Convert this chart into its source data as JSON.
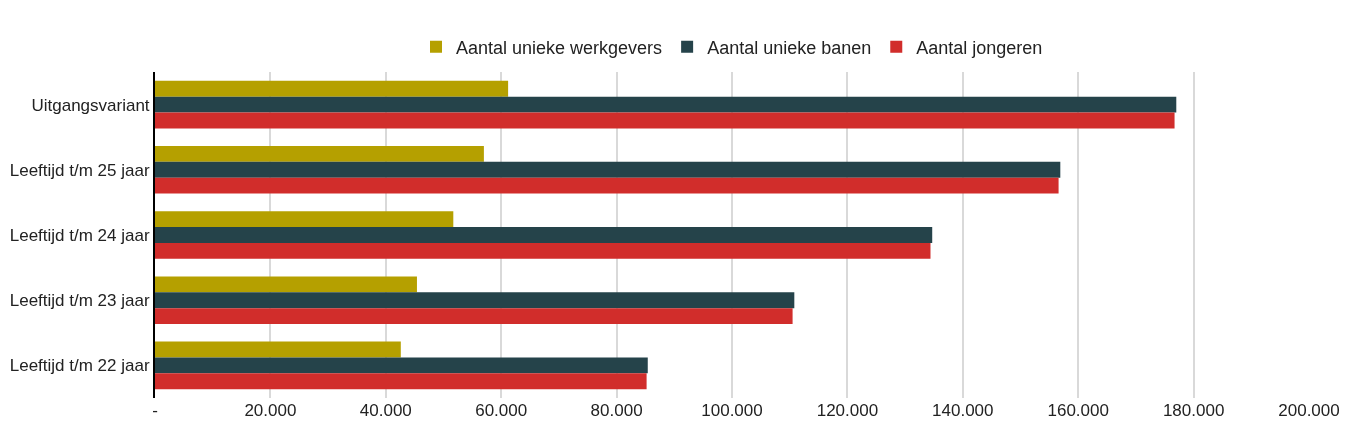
{
  "chart_data": {
    "type": "bar",
    "orientation": "horizontal",
    "categories": [
      "Uitgangsvariant",
      "Leeftijd t/m 25 jaar",
      "Leeftijd t/m 24 jaar",
      "Leeftijd t/m 23 jaar",
      "Leeftijd t/m 22 jaar"
    ],
    "series": [
      {
        "name": "Aantal unieke werkgevers",
        "color": "#b5a000",
        "values": [
          61200,
          57000,
          51700,
          45400,
          42600
        ]
      },
      {
        "name": "Aantal unieke banen",
        "color": "#25434a",
        "values": [
          177000,
          156900,
          134700,
          110800,
          85400
        ]
      },
      {
        "name": "Aantal jongeren",
        "color": "#d12d2b",
        "values": [
          176700,
          156600,
          134400,
          110500,
          85200
        ]
      }
    ],
    "xlim": [
      0,
      200000
    ],
    "xticks": [
      {
        "value": 0,
        "label": "-"
      },
      {
        "value": 20000,
        "label": "20.000"
      },
      {
        "value": 40000,
        "label": "40.000"
      },
      {
        "value": 60000,
        "label": "60.000"
      },
      {
        "value": 80000,
        "label": "80.000"
      },
      {
        "value": 100000,
        "label": "100.000"
      },
      {
        "value": 120000,
        "label": "120.000"
      },
      {
        "value": 140000,
        "label": "140.000"
      },
      {
        "value": 160000,
        "label": "160.000"
      },
      {
        "value": 180000,
        "label": "180.000"
      },
      {
        "value": 200000,
        "label": "200.000"
      }
    ],
    "grid": "x",
    "legend": "top"
  }
}
